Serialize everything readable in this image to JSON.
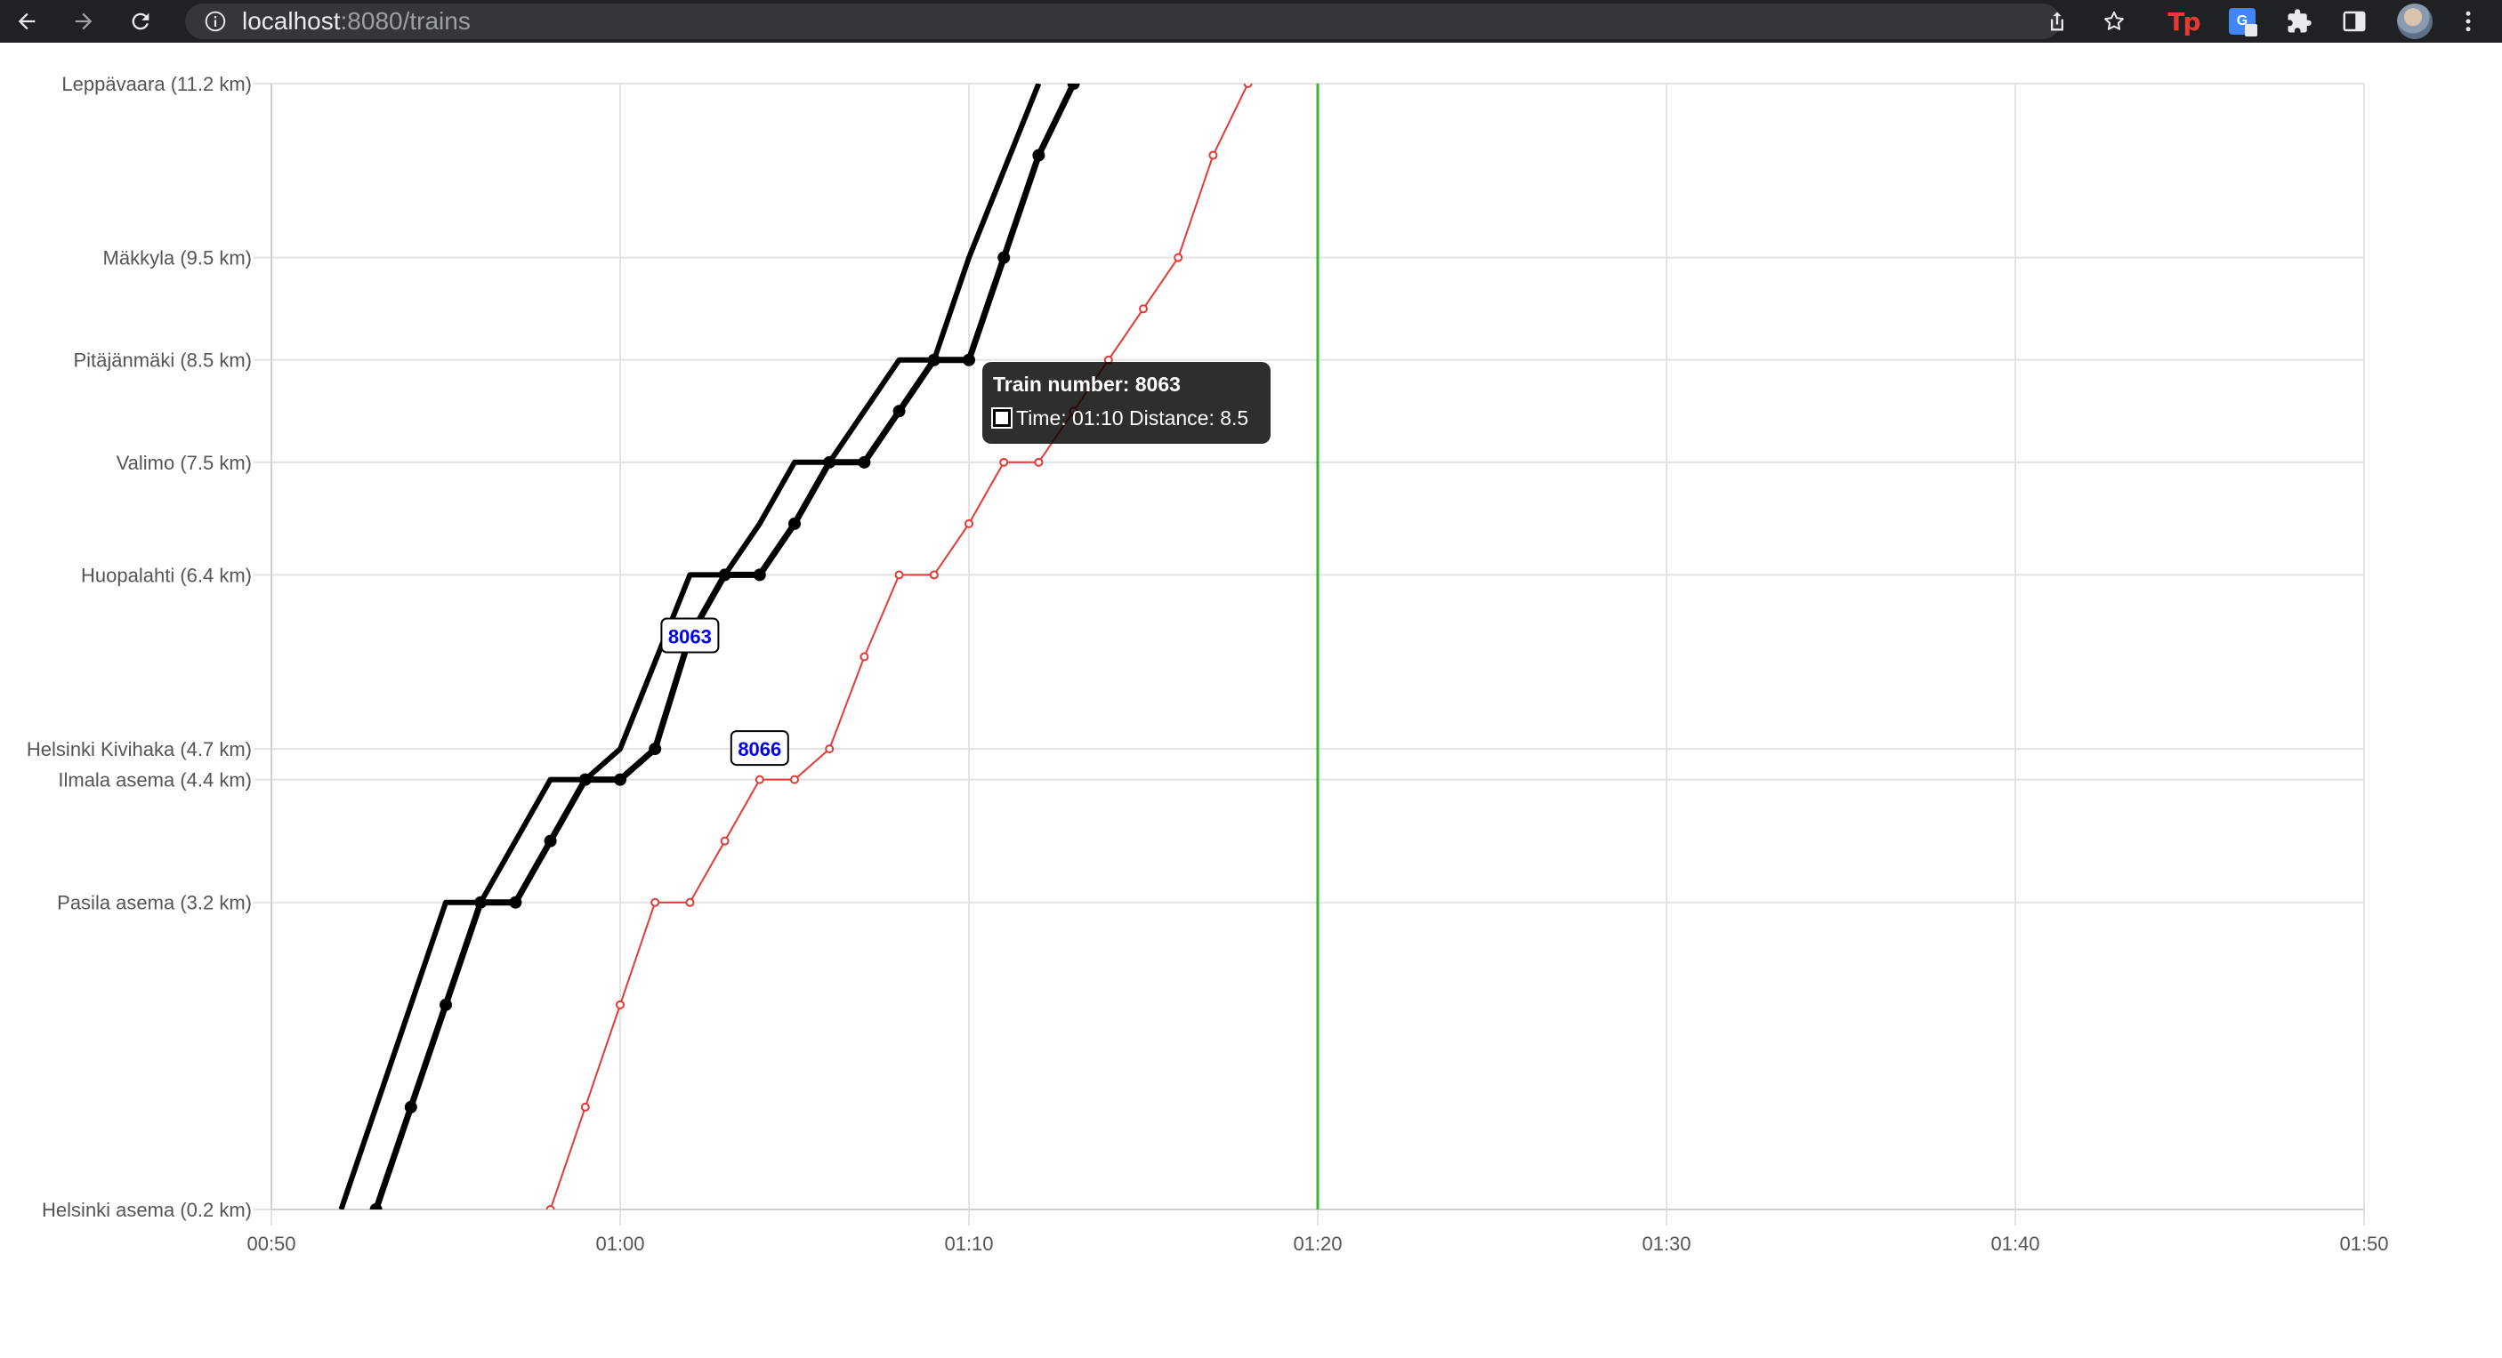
{
  "browser": {
    "url_host": "localhost",
    "url_rest": ":8080/trains",
    "icons": {
      "back": "arrow-left-icon",
      "forward": "arrow-right-icon",
      "reload": "reload-icon",
      "site_info": "info-icon",
      "share": "share-icon",
      "bookmark": "star-icon",
      "ext1": "tp-extension-icon",
      "ext2": "google-translate-icon",
      "extensions": "puzzle-icon",
      "side_panel": "side-panel-icon",
      "menu": "kebab-menu-icon"
    },
    "ext_tp_label": "Tp",
    "ext_translate_label": "G"
  },
  "tooltip": {
    "title": "Train number: 8063",
    "body": "Time: 01:10 Distance: 8.5"
  },
  "chart_data": {
    "type": "line",
    "x_ticks": [
      "00:50",
      "01:00",
      "01:10",
      "01:20",
      "01:30",
      "01:40",
      "01:50"
    ],
    "xlim": [
      "00:50",
      "01:50"
    ],
    "ylim": [
      0.2,
      11.2
    ],
    "y_stations": [
      {
        "label": "Helsinki asema (0.2 km)",
        "km": 0.2
      },
      {
        "label": "Pasila asema (3.2 km)",
        "km": 3.2
      },
      {
        "label": "Ilmala asema (4.4 km)",
        "km": 4.4
      },
      {
        "label": "Helsinki Kivihaka (4.7 km)",
        "km": 4.7
      },
      {
        "label": "Huopalahti (6.4 km)",
        "km": 6.4
      },
      {
        "label": "Valimo (7.5 km)",
        "km": 7.5
      },
      {
        "label": "Pitäjänmäki (8.5 km)",
        "km": 8.5
      },
      {
        "label": "Mäkkyla (9.5 km)",
        "km": 9.5
      },
      {
        "label": "Leppävaara (11.2 km)",
        "km": 11.2
      }
    ],
    "current_time": "01:20",
    "current_time_color": "#3ab52f",
    "series": [
      {
        "color": "#000000",
        "points": [
          [
            "00:52",
            0.2
          ],
          [
            "00:55",
            3.2
          ],
          [
            "00:56",
            3.2
          ],
          [
            "00:58",
            4.4
          ],
          [
            "00:59",
            4.4
          ],
          [
            "01:00",
            4.7
          ],
          [
            "01:02",
            6.4
          ],
          [
            "01:03",
            6.4
          ],
          [
            "01:04",
            6.9
          ],
          [
            "01:05",
            7.5
          ],
          [
            "01:06",
            7.5
          ],
          [
            "01:08",
            8.5
          ],
          [
            "01:09",
            8.5
          ],
          [
            "01:10",
            9.5
          ],
          [
            "01:12",
            11.2
          ]
        ]
      },
      {
        "name": "8063",
        "color": "#000000",
        "points": [
          [
            "00:53",
            0.2
          ],
          [
            "00:54",
            1.2
          ],
          [
            "00:55",
            2.2
          ],
          [
            "00:56",
            3.2
          ],
          [
            "00:57",
            3.2
          ],
          [
            "00:58",
            3.8
          ],
          [
            "00:59",
            4.4
          ],
          [
            "01:00",
            4.4
          ],
          [
            "01:01",
            4.7
          ],
          [
            "01:02",
            5.8
          ],
          [
            "01:03",
            6.4
          ],
          [
            "01:04",
            6.4
          ],
          [
            "01:05",
            6.9
          ],
          [
            "01:06",
            7.5
          ],
          [
            "01:07",
            7.5
          ],
          [
            "01:08",
            8.0
          ],
          [
            "01:09",
            8.5
          ],
          [
            "01:10",
            8.5
          ],
          [
            "01:11",
            9.5
          ],
          [
            "01:12",
            10.5
          ],
          [
            "01:13",
            11.2
          ]
        ]
      },
      {
        "name": "8066",
        "color": "#e53935",
        "points": [
          [
            "00:58",
            0.2
          ],
          [
            "00:59",
            1.2
          ],
          [
            "01:00",
            2.2
          ],
          [
            "01:01",
            3.2
          ],
          [
            "01:02",
            3.2
          ],
          [
            "01:03",
            3.8
          ],
          [
            "01:04",
            4.4
          ],
          [
            "01:05",
            4.4
          ],
          [
            "01:06",
            4.7
          ],
          [
            "01:07",
            5.6
          ],
          [
            "01:08",
            6.4
          ],
          [
            "01:09",
            6.4
          ],
          [
            "01:10",
            6.9
          ],
          [
            "01:11",
            7.5
          ],
          [
            "01:12",
            7.5
          ],
          [
            "01:13",
            8.0
          ],
          [
            "01:14",
            8.5
          ],
          [
            "01:15",
            9.0
          ],
          [
            "01:16",
            9.5
          ],
          [
            "01:17",
            10.5
          ],
          [
            "01:18",
            11.2
          ]
        ]
      }
    ],
    "train_labels": [
      {
        "text": "8063",
        "time": "01:02",
        "km": 5.8
      },
      {
        "text": "8066",
        "time": "01:04",
        "km": 4.7
      }
    ]
  }
}
